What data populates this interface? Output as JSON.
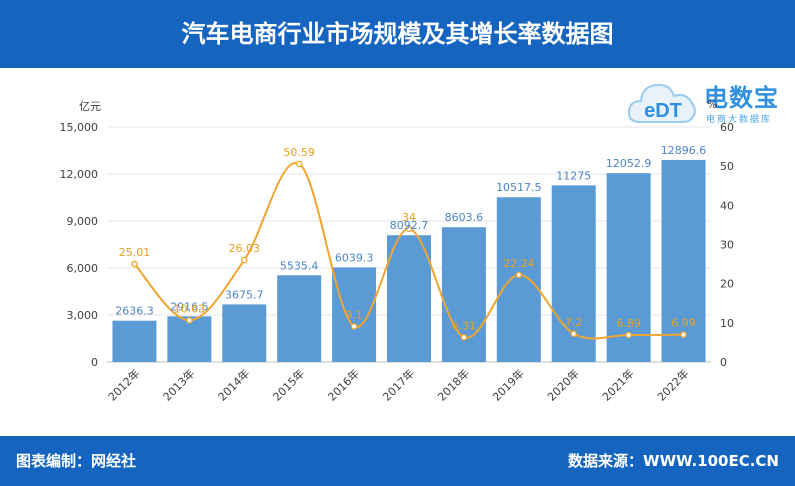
{
  "header": {
    "title": "汽车电商行业市场规模及其增长率数据图"
  },
  "footer": {
    "editor": "图表编制：网经社",
    "source": "数据来源：WWW.100EC.CN"
  },
  "logo": {
    "brand": "电数宝",
    "tagline": "电商大数据库",
    "mark": "eDT"
  },
  "colors": {
    "header": "#1565c0",
    "bar": "#5b9bd5",
    "line": "#f0a530",
    "bar_label": "#4a86c8",
    "line_label": "#e8a020"
  },
  "chart_data": {
    "type": "bar",
    "categories": [
      "2012年",
      "2013年",
      "2014年",
      "2015年",
      "2016年",
      "2017年",
      "2018年",
      "2019年",
      "2020年",
      "2021年",
      "2022年"
    ],
    "series": [
      {
        "values": [
          2636.3,
          2916.5,
          3675.7,
          5535.4,
          6039.3,
          8092.7,
          8603.6,
          10517.5,
          11275,
          12052.9,
          12896.6
        ],
        "axis": "left",
        "type": "bar"
      },
      {
        "values": [
          25.01,
          10.63,
          26.03,
          50.59,
          9.1,
          34,
          6.31,
          22.24,
          7.2,
          6.89,
          6.99
        ],
        "axis": "right",
        "type": "line",
        "smooth": true
      }
    ],
    "ylabel": "亿元",
    "y2label": "%",
    "ylim": [
      0,
      15000
    ],
    "y2lim": [
      0,
      60
    ],
    "yticks": [
      "0",
      "3,000",
      "6,000",
      "9,000",
      "12,000",
      "15,000"
    ],
    "y2ticks": [
      "0",
      "10",
      "20",
      "30",
      "40",
      "50",
      "60"
    ],
    "grid": true
  }
}
